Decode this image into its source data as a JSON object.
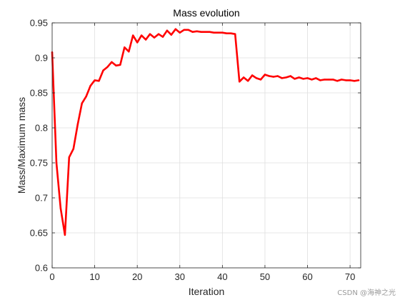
{
  "chart_data": {
    "type": "line",
    "title": "Mass evolution",
    "xlabel": "Iteration",
    "ylabel": "Mass/Maximum mass",
    "xlim": [
      0,
      72.5
    ],
    "ylim": [
      0.6,
      0.95
    ],
    "xticks": [
      0,
      10,
      20,
      30,
      40,
      50,
      60,
      70
    ],
    "yticks": [
      0.6,
      0.65,
      0.7,
      0.75,
      0.8,
      0.85,
      0.9,
      0.95
    ],
    "xtick_labels": [
      "0",
      "10",
      "20",
      "30",
      "40",
      "50",
      "60",
      "70"
    ],
    "ytick_labels": [
      "0.6",
      "0.65",
      "0.7",
      "0.75",
      "0.8",
      "0.85",
      "0.9",
      "0.95"
    ],
    "grid": true,
    "line_color": "#ff0000",
    "series": [
      {
        "x": [
          0,
          1,
          2,
          3,
          4,
          5,
          6,
          7,
          8,
          9,
          10,
          11,
          12,
          13,
          14,
          15,
          16,
          17,
          18,
          19,
          20,
          21,
          22,
          23,
          24,
          25,
          26,
          27,
          28,
          29,
          30,
          31,
          32,
          33,
          34,
          35,
          36,
          37,
          38,
          39,
          40,
          41,
          42,
          43,
          44,
          45,
          46,
          47,
          48,
          49,
          50,
          51,
          52,
          53,
          54,
          55,
          56,
          57,
          58,
          59,
          60,
          61,
          62,
          63,
          64,
          65,
          66,
          67,
          68,
          69,
          70,
          71,
          72
        ],
        "values": [
          0.908,
          0.75,
          0.685,
          0.647,
          0.758,
          0.77,
          0.805,
          0.835,
          0.845,
          0.86,
          0.868,
          0.867,
          0.882,
          0.887,
          0.894,
          0.889,
          0.89,
          0.915,
          0.909,
          0.932,
          0.922,
          0.932,
          0.926,
          0.934,
          0.929,
          0.934,
          0.93,
          0.939,
          0.933,
          0.941,
          0.936,
          0.94,
          0.94,
          0.937,
          0.938,
          0.937,
          0.937,
          0.937,
          0.936,
          0.936,
          0.936,
          0.935,
          0.935,
          0.934,
          0.866,
          0.872,
          0.867,
          0.875,
          0.871,
          0.869,
          0.876,
          0.874,
          0.873,
          0.874,
          0.871,
          0.872,
          0.874,
          0.87,
          0.872,
          0.87,
          0.871,
          0.869,
          0.871,
          0.868,
          0.869,
          0.869,
          0.869,
          0.867,
          0.869,
          0.868,
          0.868,
          0.867,
          0.868
        ]
      }
    ]
  },
  "watermark": "CSDN @海神之光"
}
